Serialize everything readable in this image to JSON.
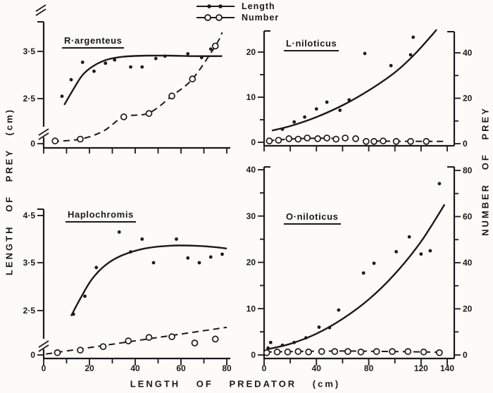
{
  "figure": {
    "colors": {
      "ink": "#1a1a1a",
      "paper": "#fcfbf8"
    },
    "legend": {
      "items": [
        {
          "label": "Length",
          "marker": "filled-dot",
          "line": "solid"
        },
        {
          "label": "Number",
          "marker": "open-circle",
          "line": "dashed"
        }
      ]
    },
    "axis_labels": {
      "left": "LENGTH OF PREY (cm)",
      "right": "NUMBER OF PREY",
      "bottom": "LENGTH OF PREDATOR (cm)"
    },
    "number_axis": {
      "top_ticks": [
        {
          "v": 40,
          "t": "40"
        },
        {
          "v": 20,
          "t": "20"
        },
        {
          "v": 0,
          "t": "0"
        }
      ],
      "top_minor_ticks": [
        10,
        30
      ],
      "bottom_ticks": [
        {
          "v": 80,
          "t": "80"
        },
        {
          "v": 60,
          "t": "60"
        },
        {
          "v": 40,
          "t": "40"
        },
        {
          "v": 20,
          "t": "20"
        },
        {
          "v": 0,
          "t": "0"
        }
      ],
      "bottom_minor_ticks": [
        10,
        30,
        50,
        70
      ]
    }
  },
  "chart_data": [
    {
      "id": "r-argenteus",
      "title": "R·argenteus",
      "type": "scatter",
      "x_range": [
        0,
        80
      ],
      "x_tick_step": 10,
      "x_tick_labels": [],
      "y_axis_break": true,
      "y_ticks": [
        {
          "v": 3.5,
          "t": "3·5"
        },
        {
          "v": 2.5,
          "t": "2·5"
        },
        {
          "v": 0,
          "t": "0"
        }
      ],
      "series": {
        "length": {
          "points": [
            [
              8,
              2.55
            ],
            [
              12,
              2.9
            ],
            [
              17,
              3.27
            ],
            [
              22,
              3.08
            ],
            [
              27,
              3.25
            ],
            [
              31,
              3.32
            ],
            [
              38,
              3.17
            ],
            [
              43,
              3.17
            ],
            [
              49,
              3.35
            ],
            [
              53,
              3.4
            ],
            [
              63,
              3.45
            ],
            [
              69,
              3.37
            ],
            [
              73,
              3.55
            ]
          ],
          "trend": [
            [
              9,
              2.15
            ],
            [
              13,
              2.7
            ],
            [
              17,
              3.0
            ],
            [
              22,
              3.2
            ],
            [
              28,
              3.33
            ],
            [
              35,
              3.39
            ],
            [
              45,
              3.41
            ],
            [
              55,
              3.41
            ],
            [
              65,
              3.4
            ],
            [
              78,
              3.4
            ]
          ]
        },
        "number": {
          "points": [
            [
              5,
              1.2
            ],
            [
              16,
              2
            ],
            [
              35,
              11.8
            ],
            [
              46,
              13.3
            ],
            [
              56,
              21
            ],
            [
              65,
              28.5
            ],
            [
              75,
              43
            ]
          ],
          "trend": [
            [
              4,
              1
            ],
            [
              16,
              2
            ],
            [
              26,
              5.5
            ],
            [
              35,
              11.8
            ],
            [
              46,
              13.5
            ],
            [
              56,
              21
            ],
            [
              65,
              28.5
            ],
            [
              75,
              43
            ],
            [
              78,
              49
            ]
          ]
        }
      }
    },
    {
      "id": "l-niloticus",
      "title": "L·niloticus",
      "type": "scatter",
      "x_range": [
        0,
        140
      ],
      "x_tick_step": 20,
      "x_tick_labels": [],
      "y_axis_break": false,
      "y_ticks": [
        {
          "v": 20,
          "t": "20"
        },
        {
          "v": 10,
          "t": "10"
        },
        {
          "v": 0,
          "t": "0"
        }
      ],
      "y_minor_ticks": [
        5,
        15
      ],
      "series": {
        "length": {
          "points": [
            [
              14,
              2.9
            ],
            [
              23,
              4.5
            ],
            [
              31,
              5.6
            ],
            [
              40,
              7.4
            ],
            [
              48,
              8.9
            ],
            [
              58,
              7.1
            ],
            [
              65,
              9.4
            ],
            [
              77,
              19.7
            ],
            [
              97,
              17
            ],
            [
              112,
              19.4
            ],
            [
              114,
              23.3
            ]
          ],
          "trend": [
            [
              6,
              2.6
            ],
            [
              20,
              3.6
            ],
            [
              40,
              5.6
            ],
            [
              60,
              8.2
            ],
            [
              80,
              11.5
            ],
            [
              100,
              15.5
            ],
            [
              115,
              19.5
            ],
            [
              132,
              25
            ]
          ]
        },
        "number": {
          "points": [
            [
              4,
              1.2
            ],
            [
              11,
              1.5
            ],
            [
              19,
              2.2
            ],
            [
              26,
              2
            ],
            [
              33,
              2.5
            ],
            [
              41,
              2.2
            ],
            [
              48,
              2.5
            ],
            [
              55,
              2
            ],
            [
              62,
              2.5
            ],
            [
              70,
              2.2
            ],
            [
              78,
              1
            ],
            [
              84,
              1
            ],
            [
              91,
              1.2
            ],
            [
              101,
              1
            ],
            [
              112,
              1
            ],
            [
              124,
              1
            ]
          ],
          "trend": [
            [
              3,
              1.3
            ],
            [
              25,
              2.2
            ],
            [
              50,
              2.4
            ],
            [
              70,
              2
            ],
            [
              80,
              1.2
            ],
            [
              138,
              1
            ]
          ]
        }
      }
    },
    {
      "id": "haplochromis",
      "title": "Haplochromis",
      "type": "scatter",
      "x_range": [
        0,
        80
      ],
      "x_tick_step": 10,
      "x_tick_labels": [
        {
          "v": 0,
          "t": "0"
        },
        {
          "v": 20,
          "t": "20"
        },
        {
          "v": 40,
          "t": "40"
        },
        {
          "v": 60,
          "t": "60"
        },
        {
          "v": 80,
          "t": "80"
        }
      ],
      "y_axis_break": true,
      "y_ticks": [
        {
          "v": 4.5,
          "t": "4·5"
        },
        {
          "v": 3.5,
          "t": "3·5"
        },
        {
          "v": 2.5,
          "t": "2·5"
        },
        {
          "v": 0,
          "t": "0"
        }
      ],
      "series": {
        "length": {
          "points": [
            [
              13,
              2.3
            ],
            [
              18,
              2.8
            ],
            [
              23,
              3.4
            ],
            [
              33,
              4.15
            ],
            [
              38,
              3.73
            ],
            [
              43,
              4.0
            ],
            [
              48,
              3.5
            ],
            [
              58,
              4.0
            ],
            [
              63,
              3.6
            ],
            [
              68,
              3.5
            ],
            [
              73,
              3.62
            ],
            [
              78,
              3.68
            ]
          ],
          "trend": [
            [
              12,
              2.2
            ],
            [
              16,
              2.75
            ],
            [
              21,
              3.15
            ],
            [
              27,
              3.45
            ],
            [
              34,
              3.65
            ],
            [
              44,
              3.8
            ],
            [
              55,
              3.86
            ],
            [
              66,
              3.86
            ],
            [
              75,
              3.83
            ],
            [
              80,
              3.8
            ]
          ]
        },
        "number": {
          "points": [
            [
              6,
              1
            ],
            [
              16,
              2.1
            ],
            [
              26,
              3.6
            ],
            [
              37,
              6.1
            ],
            [
              46,
              7.6
            ],
            [
              56,
              7.9
            ],
            [
              66,
              5.2
            ],
            [
              75,
              6.9
            ]
          ],
          "trend": [
            [
              1,
              0.4
            ],
            [
              80,
              12
            ]
          ]
        }
      }
    },
    {
      "id": "o-niloticus",
      "title": "O·niloticus",
      "type": "scatter",
      "x_range": [
        0,
        140
      ],
      "x_tick_step": 20,
      "x_tick_labels": [
        {
          "v": 0,
          "t": "0"
        },
        {
          "v": 40,
          "t": "40"
        },
        {
          "v": 80,
          "t": "80"
        },
        {
          "v": 120,
          "t": "120"
        },
        {
          "v": 140,
          "t": "140"
        }
      ],
      "y_axis_break": false,
      "y_ticks": [
        {
          "v": 40,
          "t": "40"
        },
        {
          "v": 30,
          "t": "30"
        },
        {
          "v": 20,
          "t": "20"
        },
        {
          "v": 10,
          "t": "10"
        },
        {
          "v": 0,
          "t": "0"
        }
      ],
      "y_minor_ticks": [
        5,
        15,
        25,
        35
      ],
      "series": {
        "length": {
          "points": [
            [
              3,
              1.5
            ],
            [
              5,
              2.7
            ],
            [
              14,
              2.1
            ],
            [
              23,
              2.7
            ],
            [
              32,
              3.7
            ],
            [
              42,
              6
            ],
            [
              50,
              5.9
            ],
            [
              57,
              9.7
            ],
            [
              76,
              17.7
            ],
            [
              84,
              19.8
            ],
            [
              101,
              22.3
            ],
            [
              111,
              25.5
            ],
            [
              120,
              21.8
            ],
            [
              127,
              22.5
            ],
            [
              134,
              37
            ]
          ],
          "trend": [
            [
              2,
              1.2
            ],
            [
              20,
              2.4
            ],
            [
              40,
              4.6
            ],
            [
              60,
              7.8
            ],
            [
              80,
              12
            ],
            [
              100,
              17.5
            ],
            [
              120,
              24.5
            ],
            [
              138,
              32.5
            ]
          ]
        },
        "number": {
          "points": [
            [
              2,
              1
            ],
            [
              10,
              1.3
            ],
            [
              18,
              1.3
            ],
            [
              26,
              1.5
            ],
            [
              34,
              1.3
            ],
            [
              44,
              1.5
            ],
            [
              54,
              1.5
            ],
            [
              64,
              1.5
            ],
            [
              74,
              1.3
            ],
            [
              86,
              1.5
            ],
            [
              98,
              1.5
            ],
            [
              110,
              1.5
            ],
            [
              122,
              1.3
            ],
            [
              134,
              1
            ]
          ],
          "trend": [
            [
              1,
              1.3
            ],
            [
              60,
              1.7
            ],
            [
              135,
              1.2
            ]
          ]
        }
      }
    }
  ]
}
